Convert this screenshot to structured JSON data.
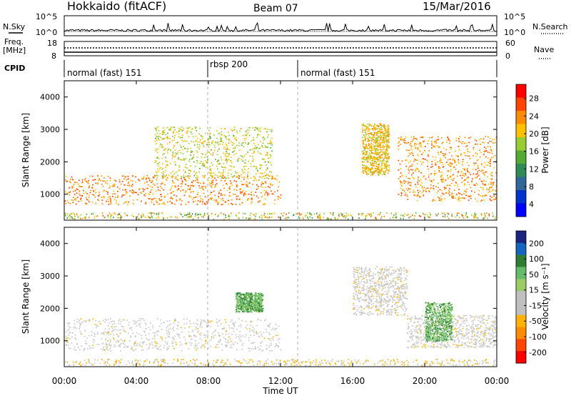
{
  "header": {
    "station": "Hokkaido (fitACF)",
    "beam": "Beam 07",
    "date": "15/Mar/2016"
  },
  "noise_panel": {
    "left_label": "N.Sky",
    "right_label": "N.Search",
    "ticks_left": [
      "10^5",
      "10^0"
    ],
    "ticks_right": [
      "10^5",
      "10^0"
    ]
  },
  "freq_panel": {
    "left_label_1": "Freq.",
    "left_label_2": "[MHz]",
    "right_label": "Nave",
    "ticks_left": [
      "18",
      "8"
    ],
    "ticks_right": [
      "60",
      "0"
    ]
  },
  "cpid_panel": {
    "label": "CPID",
    "segments": [
      {
        "label": "normal (fast) 151",
        "start_h": 0
      },
      {
        "label": "rbsp 200",
        "start_h": 8
      },
      {
        "label": "normal (fast) 151",
        "start_h": 13
      }
    ]
  },
  "power_panel": {
    "ylabel": "Slant Range [km]",
    "yticks": [
      "4000",
      "3000",
      "2000",
      "1000"
    ],
    "colorbar_label": "Power [dB]",
    "colorbar_ticks": [
      "28",
      "24",
      "20",
      "16",
      "12",
      "8",
      "4"
    ],
    "colorbar_colors": [
      "#ff0000",
      "#ff4500",
      "#ff8c00",
      "#ffc000",
      "#99cc33",
      "#55aa33",
      "#2e8b57",
      "#336699",
      "#0033cc",
      "#0000ff"
    ]
  },
  "velocity_panel": {
    "ylabel": "Slant Range [km]",
    "yticks": [
      "4000",
      "3000",
      "2000",
      "1000"
    ],
    "colorbar_label": "Velocity [m s⁻¹]",
    "colorbar_ticks": [
      "200",
      "100",
      "50",
      "15",
      "-15",
      "-50",
      "-100",
      "-200"
    ],
    "colorbar_colors": [
      "#1a237e",
      "#1565c0",
      "#2e7d32",
      "#66bb6a",
      "#9ccc65",
      "#c0c0c0",
      "#c0c0c0",
      "#ffb300",
      "#ff8c00",
      "#ff4500",
      "#ff0000"
    ],
    "ground_scatter_color": "#c8c8c8"
  },
  "x_axis": {
    "ticks": [
      "00:00",
      "04:00",
      "08:00",
      "12:00",
      "16:00",
      "20:00",
      "00:00"
    ],
    "label": "Time UT"
  },
  "chart_data": {
    "type": "heatmap",
    "title": "Hokkaido (fitACF)",
    "xlabel": "Time UT",
    "ylabel": "Slant Range [km]",
    "xlim_h": [
      0,
      24
    ],
    "ylim_km": [
      200,
      4500
    ],
    "panels": [
      {
        "name": "Power",
        "units": "dB",
        "range": [
          0,
          30
        ],
        "features": [
          {
            "t": [
              0,
              12
            ],
            "r": [
              700,
              1600
            ],
            "value": 28
          },
          {
            "t": [
              5,
              11.5
            ],
            "r": [
              1500,
              3100
            ],
            "value": 22
          },
          {
            "t": [
              16.5,
              18
            ],
            "r": [
              1600,
              3200
            ],
            "value": 24
          },
          {
            "t": [
              18.5,
              24
            ],
            "r": [
              800,
              2800
            ],
            "value": 27
          }
        ]
      },
      {
        "name": "Velocity",
        "units": "m s⁻¹",
        "range": [
          -200,
          200
        ],
        "features": [
          {
            "t": [
              0,
              12
            ],
            "r": [
              700,
              1700
            ],
            "value": 0,
            "ground_scatter": true
          },
          {
            "t": [
              19,
              24
            ],
            "r": [
              800,
              1800
            ],
            "value": 0,
            "ground_scatter": true
          },
          {
            "t": [
              16,
              19
            ],
            "r": [
              1800,
              3300
            ],
            "value": 0,
            "ground_scatter": true
          },
          {
            "t": [
              9.5,
              11
            ],
            "r": [
              1900,
              2500
            ],
            "value": 60
          },
          {
            "t": [
              20,
              21.5
            ],
            "r": [
              1000,
              2200
            ],
            "value": 40
          }
        ]
      }
    ]
  }
}
